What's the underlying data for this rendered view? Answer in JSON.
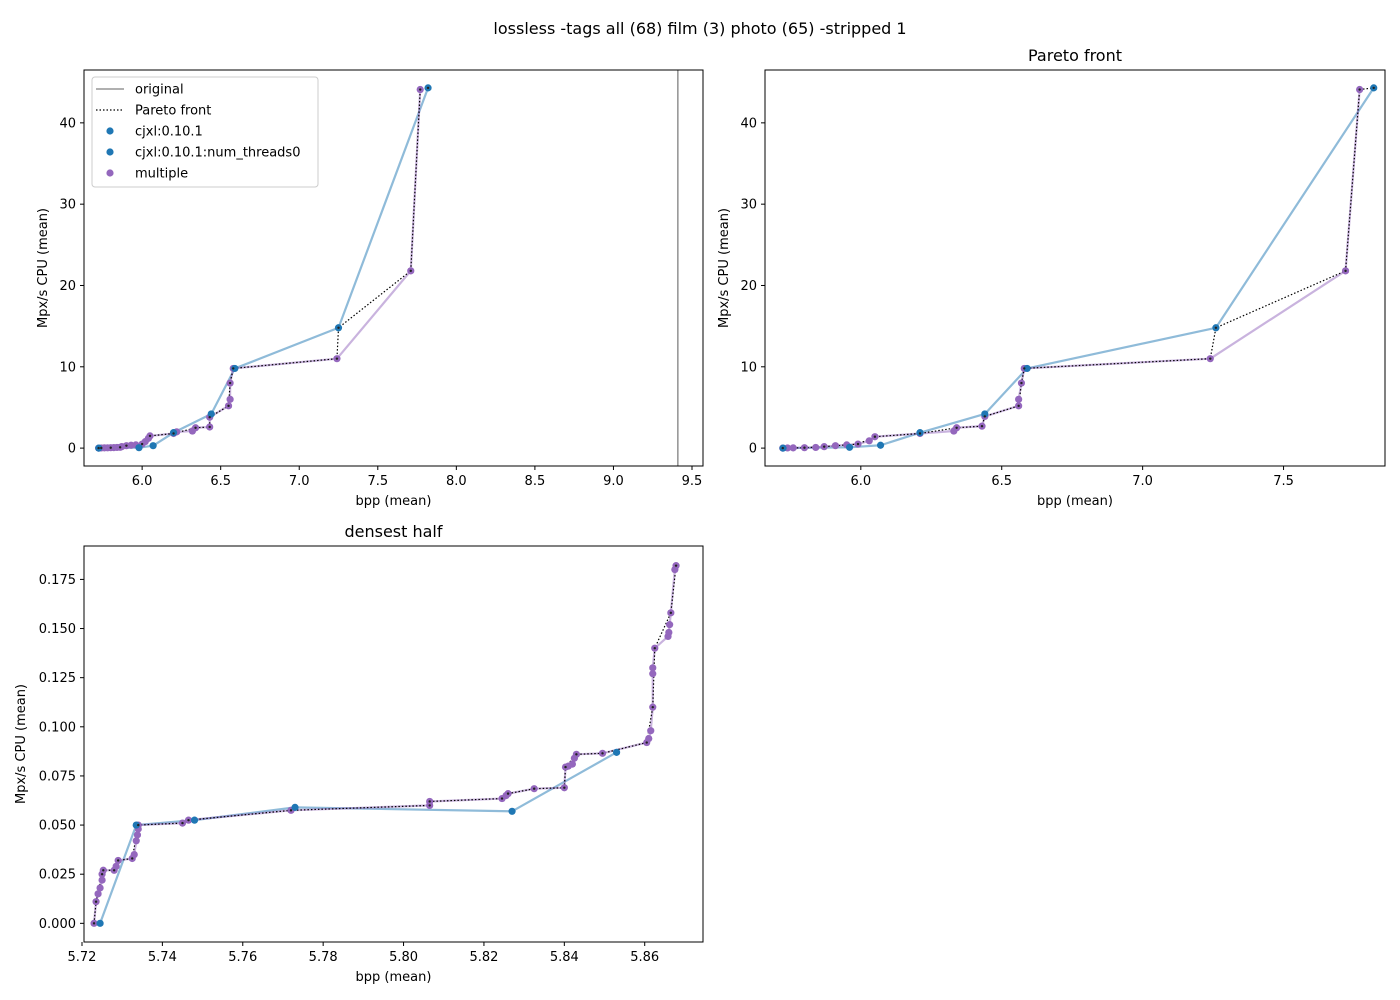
{
  "figure": {
    "title": "lossless -tags all (68) film (3) photo (65) -stripped 1"
  },
  "colors": {
    "cjxl": "#1f77b4",
    "multiple": "#9467bd",
    "original": "#808080",
    "pareto": "#000000"
  },
  "legend": {
    "placement": "upper left",
    "entries": [
      {
        "label": "original",
        "style": "line",
        "color": "#808080"
      },
      {
        "label": "Pareto front",
        "style": "dotted",
        "color": "#000000"
      },
      {
        "label": "cjxl:0.10.1",
        "style": "marker",
        "color": "#1f77b4"
      },
      {
        "label": "cjxl:0.10.1:num_threads0",
        "style": "marker",
        "color": "#1f77b4"
      },
      {
        "label": "multiple",
        "style": "marker",
        "color": "#9467bd"
      }
    ]
  },
  "chart_data": [
    {
      "type": "scatter",
      "title": "",
      "xlabel": "bpp (mean)",
      "ylabel": "Mpx/s CPU (mean)",
      "xlim": [
        5.63,
        9.57
      ],
      "ylim": [
        -2.2,
        46.5
      ],
      "xticks": [
        6.0,
        6.5,
        7.0,
        7.5,
        8.0,
        8.5,
        9.0,
        9.5
      ],
      "yticks": [
        0,
        10,
        20,
        30,
        40
      ],
      "tick_decimals": {
        "x": 1,
        "y": 0
      },
      "grid": false,
      "original_bpp": 9.41,
      "legend": true,
      "series": [
        {
          "name": "cjxl:0.10.1",
          "color": "#1f77b4",
          "line": true,
          "points": [
            [
              5.724,
              0.0
            ],
            [
              5.98,
              0.05
            ],
            [
              6.07,
              0.3
            ],
            [
              6.2,
              1.9
            ],
            [
              6.44,
              4.2
            ],
            [
              6.59,
              9.8
            ],
            [
              7.25,
              14.8
            ],
            [
              7.82,
              44.3
            ]
          ]
        },
        {
          "name": "multiple",
          "color": "#9467bd",
          "line": true,
          "points": [
            [
              5.723,
              0.0
            ],
            [
              5.74,
              0.02
            ],
            [
              5.76,
              0.03
            ],
            [
              5.78,
              0.04
            ],
            [
              5.8,
              0.05
            ],
            [
              5.82,
              0.06
            ],
            [
              5.84,
              0.08
            ],
            [
              5.86,
              0.1
            ],
            [
              5.87,
              0.18
            ],
            [
              5.9,
              0.3
            ],
            [
              5.93,
              0.35
            ],
            [
              5.96,
              0.4
            ],
            [
              6.0,
              0.5
            ],
            [
              6.02,
              0.8
            ],
            [
              6.04,
              1.2
            ],
            [
              6.05,
              1.5
            ],
            [
              6.2,
              1.8
            ],
            [
              6.22,
              2.0
            ],
            [
              6.32,
              2.1
            ],
            [
              6.34,
              2.5
            ],
            [
              6.43,
              2.6
            ],
            [
              6.43,
              3.8
            ],
            [
              6.55,
              5.2
            ],
            [
              6.56,
              6.0
            ],
            [
              6.56,
              8.0
            ],
            [
              6.58,
              9.8
            ],
            [
              7.24,
              11.0
            ],
            [
              7.71,
              21.8
            ],
            [
              7.77,
              44.1
            ]
          ]
        },
        {
          "name": "Pareto front",
          "color": "#000000",
          "dotted": true,
          "points": [
            [
              5.723,
              0.0
            ],
            [
              5.74,
              0.02
            ],
            [
              5.8,
              0.05
            ],
            [
              5.86,
              0.1
            ],
            [
              5.9,
              0.3
            ],
            [
              6.0,
              0.5
            ],
            [
              6.05,
              1.5
            ],
            [
              6.2,
              1.8
            ],
            [
              6.34,
              2.5
            ],
            [
              6.43,
              2.6
            ],
            [
              6.43,
              3.8
            ],
            [
              6.55,
              5.2
            ],
            [
              6.56,
              8.0
            ],
            [
              6.58,
              9.8
            ],
            [
              7.24,
              11.0
            ],
            [
              7.25,
              14.8
            ],
            [
              7.71,
              21.8
            ],
            [
              7.77,
              44.1
            ],
            [
              7.82,
              44.3
            ]
          ]
        }
      ]
    },
    {
      "type": "scatter",
      "title": "Pareto front",
      "xlabel": "bpp (mean)",
      "ylabel": "Mpx/s CPU (mean)",
      "xlim": [
        5.66,
        7.86
      ],
      "ylim": [
        -2.2,
        46.5
      ],
      "xticks": [
        6.0,
        6.5,
        7.0,
        7.5
      ],
      "yticks": [
        0,
        10,
        20,
        30,
        40
      ],
      "tick_decimals": {
        "x": 1,
        "y": 0
      },
      "grid": false,
      "legend": false,
      "series": [
        {
          "name": "cjxl:0.10.1",
          "color": "#1f77b4",
          "line": true,
          "points": [
            [
              5.724,
              0.0
            ],
            [
              5.96,
              0.1
            ],
            [
              6.07,
              0.35
            ],
            [
              6.21,
              1.9
            ],
            [
              6.44,
              4.2
            ],
            [
              6.59,
              9.8
            ],
            [
              7.26,
              14.8
            ],
            [
              7.82,
              44.3
            ]
          ]
        },
        {
          "name": "multiple",
          "color": "#9467bd",
          "line": true,
          "points": [
            [
              5.723,
              0.0
            ],
            [
              5.74,
              0.02
            ],
            [
              5.76,
              0.03
            ],
            [
              5.8,
              0.05
            ],
            [
              5.84,
              0.08
            ],
            [
              5.87,
              0.18
            ],
            [
              5.91,
              0.3
            ],
            [
              5.95,
              0.4
            ],
            [
              5.99,
              0.5
            ],
            [
              6.03,
              0.9
            ],
            [
              6.05,
              1.4
            ],
            [
              6.21,
              1.8
            ],
            [
              6.33,
              2.1
            ],
            [
              6.34,
              2.5
            ],
            [
              6.43,
              2.7
            ],
            [
              6.44,
              3.9
            ],
            [
              6.56,
              5.2
            ],
            [
              6.56,
              6.0
            ],
            [
              6.57,
              8.0
            ],
            [
              6.58,
              9.8
            ],
            [
              7.24,
              11.0
            ],
            [
              7.72,
              21.8
            ],
            [
              7.77,
              44.1
            ]
          ]
        },
        {
          "name": "Pareto front",
          "color": "#000000",
          "dotted": true,
          "points": [
            [
              5.723,
              0.0
            ],
            [
              5.8,
              0.05
            ],
            [
              5.87,
              0.18
            ],
            [
              5.99,
              0.5
            ],
            [
              6.05,
              1.4
            ],
            [
              6.21,
              1.8
            ],
            [
              6.34,
              2.5
            ],
            [
              6.43,
              2.7
            ],
            [
              6.44,
              3.9
            ],
            [
              6.56,
              5.2
            ],
            [
              6.57,
              8.0
            ],
            [
              6.58,
              9.8
            ],
            [
              7.24,
              11.0
            ],
            [
              7.26,
              14.8
            ],
            [
              7.72,
              21.8
            ],
            [
              7.77,
              44.1
            ],
            [
              7.82,
              44.3
            ]
          ]
        }
      ]
    },
    {
      "type": "scatter",
      "title": "densest half",
      "xlabel": "bpp (mean)",
      "ylabel": "Mpx/s CPU (mean)",
      "xlim": [
        5.7205,
        5.8745
      ],
      "ylim": [
        -0.0095,
        0.192
      ],
      "xticks": [
        5.72,
        5.74,
        5.76,
        5.78,
        5.8,
        5.82,
        5.84,
        5.86
      ],
      "yticks": [
        0.0,
        0.025,
        0.05,
        0.075,
        0.1,
        0.125,
        0.15,
        0.175
      ],
      "tick_decimals": {
        "x": 2,
        "y": 3
      },
      "grid": false,
      "legend": false,
      "series": [
        {
          "name": "cjxl:0.10.1",
          "color": "#1f77b4",
          "line": true,
          "points": [
            [
              5.7245,
              0.0
            ],
            [
              5.7335,
              0.05
            ],
            [
              5.748,
              0.0525
            ],
            [
              5.773,
              0.059
            ],
            [
              5.827,
              0.057
            ],
            [
              5.853,
              0.087
            ]
          ]
        },
        {
          "name": "multiple",
          "color": "#9467bd",
          "line": true,
          "points": [
            [
              5.723,
              0.0
            ],
            [
              5.7235,
              0.011
            ],
            [
              5.724,
              0.015
            ],
            [
              5.7245,
              0.018
            ],
            [
              5.725,
              0.022
            ],
            [
              5.725,
              0.025
            ],
            [
              5.7253,
              0.027
            ],
            [
              5.728,
              0.027
            ],
            [
              5.7285,
              0.029
            ],
            [
              5.729,
              0.032
            ],
            [
              5.7325,
              0.033
            ],
            [
              5.733,
              0.035
            ],
            [
              5.7335,
              0.042
            ],
            [
              5.7338,
              0.045
            ],
            [
              5.734,
              0.048
            ],
            [
              5.734,
              0.05
            ],
            [
              5.745,
              0.051
            ],
            [
              5.7465,
              0.0525
            ],
            [
              5.772,
              0.0575
            ],
            [
              5.8065,
              0.06
            ],
            [
              5.8065,
              0.062
            ],
            [
              5.8245,
              0.0635
            ],
            [
              5.8255,
              0.065
            ],
            [
              5.826,
              0.066
            ],
            [
              5.8325,
              0.0685
            ],
            [
              5.84,
              0.069
            ],
            [
              5.8403,
              0.0795
            ],
            [
              5.841,
              0.08
            ],
            [
              5.842,
              0.081
            ],
            [
              5.8425,
              0.084
            ],
            [
              5.843,
              0.086
            ],
            [
              5.8495,
              0.0865
            ],
            [
              5.8605,
              0.092
            ],
            [
              5.861,
              0.094
            ],
            [
              5.8615,
              0.098
            ],
            [
              5.862,
              0.11
            ],
            [
              5.862,
              0.127
            ],
            [
              5.862,
              0.13
            ],
            [
              5.8625,
              0.14
            ],
            [
              5.8658,
              0.146
            ],
            [
              5.866,
              0.148
            ],
            [
              5.8662,
              0.152
            ],
            [
              5.8665,
              0.158
            ],
            [
              5.8675,
              0.18
            ],
            [
              5.8678,
              0.182
            ]
          ]
        },
        {
          "name": "Pareto front",
          "color": "#000000",
          "dotted": true,
          "points": [
            [
              5.723,
              0.0
            ],
            [
              5.7235,
              0.011
            ],
            [
              5.725,
              0.025
            ],
            [
              5.7253,
              0.027
            ],
            [
              5.728,
              0.027
            ],
            [
              5.729,
              0.032
            ],
            [
              5.7325,
              0.033
            ],
            [
              5.734,
              0.05
            ],
            [
              5.745,
              0.051
            ],
            [
              5.7465,
              0.0525
            ],
            [
              5.772,
              0.0575
            ],
            [
              5.8065,
              0.06
            ],
            [
              5.8065,
              0.062
            ],
            [
              5.8245,
              0.0635
            ],
            [
              5.826,
              0.066
            ],
            [
              5.8325,
              0.0685
            ],
            [
              5.84,
              0.069
            ],
            [
              5.8403,
              0.0795
            ],
            [
              5.843,
              0.086
            ],
            [
              5.8495,
              0.0865
            ],
            [
              5.8605,
              0.092
            ],
            [
              5.862,
              0.11
            ],
            [
              5.8625,
              0.14
            ],
            [
              5.8665,
              0.158
            ],
            [
              5.8678,
              0.182
            ]
          ]
        }
      ]
    }
  ]
}
